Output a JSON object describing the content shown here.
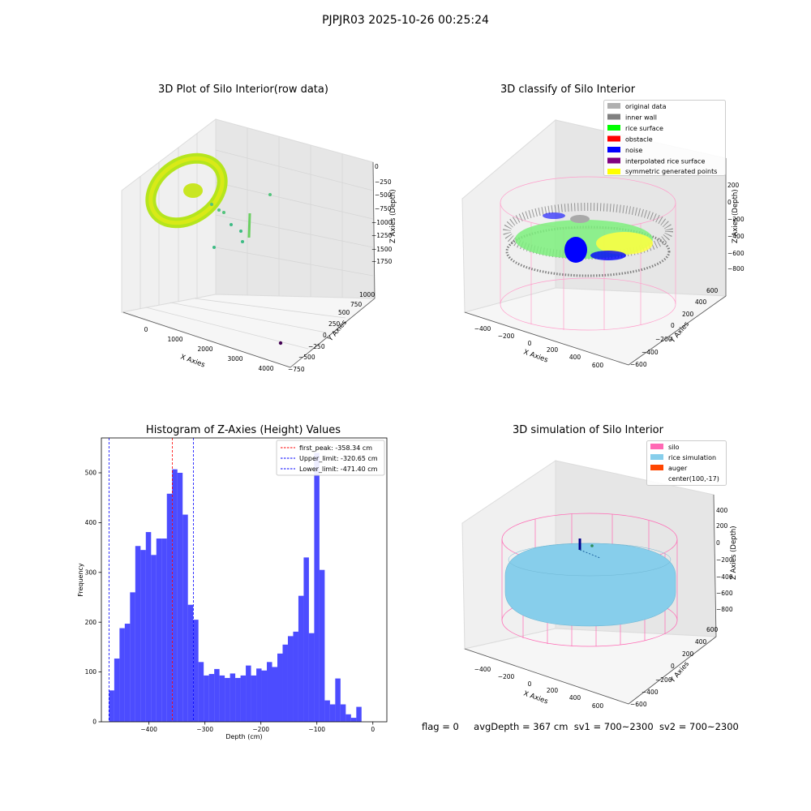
{
  "figure": {
    "suptitle": "PJPJR03 2025-10-26 00:25:24",
    "status_line": {
      "flag": "flag = 0",
      "avg_depth": "avgDepth = 367 cm",
      "sv1": "sv1 = 700~2300",
      "sv2": "sv2 = 700~2300"
    }
  },
  "panels": {
    "raw": {
      "title": "3D Plot of Silo Interior(row data)",
      "xlabel": "X Axies",
      "ylabel": "Y Axies",
      "zlabel": "Z Axies (Depth)",
      "xticks": [
        "0",
        "1000",
        "2000",
        "3000",
        "4000"
      ],
      "yticks": [
        "−750",
        "−500",
        "−250",
        "0",
        "250",
        "500",
        "750",
        "1000"
      ],
      "zticks": [
        "0",
        "−250",
        "−500",
        "−750",
        "−1000",
        "−1250",
        "−1500",
        "−1750"
      ]
    },
    "classify": {
      "title": "3D classify of Silo Interior",
      "xlabel": "X Axies",
      "ylabel": "Y Axies",
      "zlabel": "Z Axies (Depth)",
      "xticks": [
        "−400",
        "−200",
        "0",
        "200",
        "400",
        "600"
      ],
      "yticks": [
        "−600",
        "−400",
        "−200",
        "0",
        "200",
        "400",
        "600"
      ],
      "zticks": [
        "200",
        "0",
        "−200",
        "−400",
        "−600",
        "−800"
      ],
      "legend": [
        {
          "label": "original data",
          "color": "#b0b0b0"
        },
        {
          "label": "inner wall",
          "color": "#808080"
        },
        {
          "label": "rice surface",
          "color": "#00ff00"
        },
        {
          "label": "obstacle",
          "color": "#ff0000"
        },
        {
          "label": "noise",
          "color": "#0000ff"
        },
        {
          "label": "interpolated rice surface",
          "color": "#800080"
        },
        {
          "label": "symmetric generated points",
          "color": "#ffff00"
        }
      ]
    },
    "simulation": {
      "title": "3D simulation of Silo Interior",
      "xlabel": "X Axies",
      "ylabel": "Y Axies",
      "zlabel": "Z Axies (Depth)",
      "xticks": [
        "−400",
        "−200",
        "0",
        "200",
        "400",
        "600"
      ],
      "yticks": [
        "−600",
        "−400",
        "−200",
        "0",
        "200",
        "400",
        "600"
      ],
      "zticks": [
        "400",
        "200",
        "0",
        "−200",
        "−400",
        "−600",
        "−800"
      ],
      "legend": [
        {
          "label": "silo",
          "color": "#ff69b4"
        },
        {
          "label": "rice simulation",
          "color": "#87ceeb"
        },
        {
          "label": "auger",
          "color": "#ff4500"
        },
        {
          "label": "center(100,-17)",
          "color": ""
        }
      ]
    }
  },
  "chart_data": {
    "type": "bar",
    "title": "Histogram of Z-Axies (Height) Values",
    "xlabel": "Depth (cm)",
    "ylabel": "Frequency",
    "bar_color": "#0000ff",
    "xlim": [
      -485,
      25
    ],
    "ylim": [
      0,
      570
    ],
    "xticks": [
      -400,
      -300,
      -200,
      -100,
      0
    ],
    "xtick_labels": [
      "−400",
      "−300",
      "−200",
      "−100",
      "0"
    ],
    "yticks": [
      0,
      100,
      200,
      300,
      400,
      500
    ],
    "bin_start": -471.4,
    "bin_width": 9.4,
    "values": [
      63,
      127,
      188,
      197,
      260,
      353,
      345,
      381,
      335,
      368,
      368,
      458,
      507,
      500,
      416,
      235,
      205,
      120,
      93,
      96,
      106,
      93,
      88,
      97,
      88,
      93,
      113,
      93,
      107,
      103,
      120,
      110,
      137,
      155,
      172,
      181,
      253,
      330,
      178,
      540,
      305,
      43,
      35,
      87,
      35,
      15,
      8,
      30
    ],
    "vlines": [
      {
        "x": -358.34,
        "label": "first_peak: -358.34 cm",
        "color": "#ff0000"
      },
      {
        "x": -320.65,
        "label": "Upper_limit: -320.65 cm",
        "color": "#0000ff"
      },
      {
        "x": -471.4,
        "label": "Lower_limit: -471.40 cm",
        "color": "#0000ff"
      }
    ],
    "legend_position": "upper right"
  }
}
